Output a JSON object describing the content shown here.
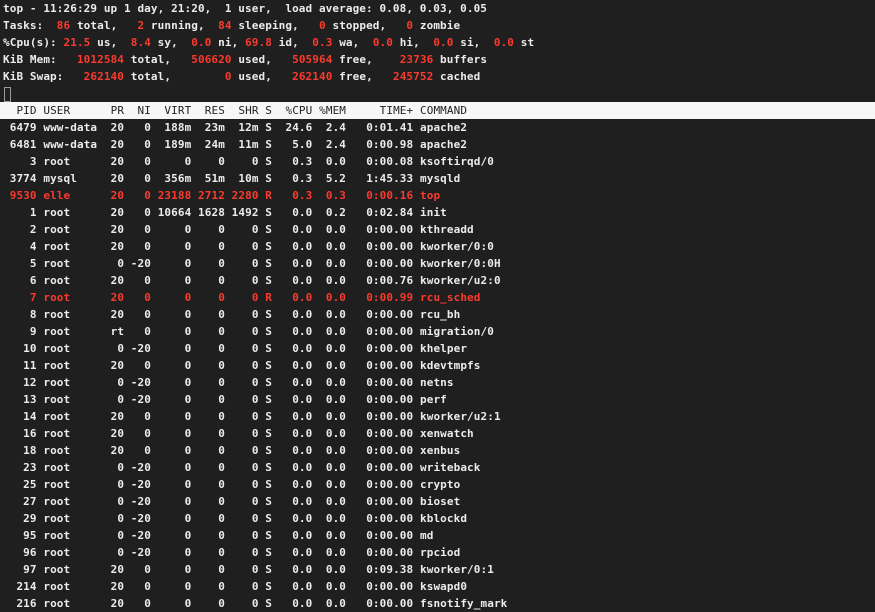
{
  "window_title": "top",
  "colors": {
    "background": "#1f1f1f",
    "text": "#ececec",
    "highlight": "#fb3a2e",
    "header_bar": "#f7f7f7"
  },
  "summary": [
    [
      {
        "t": "top - 11:26:29 up 1 day, 21:20,  1 user,  load average: 0.08, 0.03, 0.05"
      }
    ],
    [
      {
        "t": "Tasks: "
      },
      {
        "v": " 86"
      },
      {
        "t": " total,   "
      },
      {
        "v": "2"
      },
      {
        "t": " running,  "
      },
      {
        "v": "84"
      },
      {
        "t": " sleeping,   "
      },
      {
        "v": "0"
      },
      {
        "t": " stopped,   "
      },
      {
        "v": "0"
      },
      {
        "t": " zombie"
      }
    ],
    [
      {
        "t": "%Cpu(s): "
      },
      {
        "v": "21.5"
      },
      {
        "t": " us,  "
      },
      {
        "v": "8.4"
      },
      {
        "t": " sy,  "
      },
      {
        "v": "0.0"
      },
      {
        "t": " ni, "
      },
      {
        "v": "69.8"
      },
      {
        "t": " id,  "
      },
      {
        "v": "0.3"
      },
      {
        "t": " wa,  "
      },
      {
        "v": "0.0"
      },
      {
        "t": " hi,  "
      },
      {
        "v": "0.0"
      },
      {
        "t": " si,  "
      },
      {
        "v": "0.0"
      },
      {
        "t": " st"
      }
    ],
    [
      {
        "t": "KiB Mem:   "
      },
      {
        "v": "1012584"
      },
      {
        "t": " total,   "
      },
      {
        "v": "506620"
      },
      {
        "t": " used,   "
      },
      {
        "v": "505964"
      },
      {
        "t": " free,    "
      },
      {
        "v": "23736"
      },
      {
        "t": " buffers"
      }
    ],
    [
      {
        "t": "KiB Swap:   "
      },
      {
        "v": "262140"
      },
      {
        "t": " total,        "
      },
      {
        "v": "0"
      },
      {
        "t": " used,   "
      },
      {
        "v": "262140"
      },
      {
        "t": " free,   "
      },
      {
        "v": "245752"
      },
      {
        "t": " cached"
      }
    ]
  ],
  "columns": [
    "PID",
    "USER",
    "PR",
    "NI",
    "VIRT",
    "RES",
    "SHR",
    "S",
    "%CPU",
    "%MEM",
    "TIME+",
    "COMMAND"
  ],
  "processes": [
    {
      "f": [
        "6479",
        "www-data",
        "20",
        "0",
        "188m",
        "23m",
        "12m",
        "S",
        "24.6",
        "2.4",
        "0:01.41",
        "apache2"
      ]
    },
    {
      "f": [
        "6481",
        "www-data",
        "20",
        "0",
        "189m",
        "24m",
        "11m",
        "S",
        "5.0",
        "2.4",
        "0:00.98",
        "apache2"
      ]
    },
    {
      "f": [
        "3",
        "root",
        "20",
        "0",
        "0",
        "0",
        "0",
        "S",
        "0.3",
        "0.0",
        "0:00.08",
        "ksoftirqd/0"
      ]
    },
    {
      "f": [
        "3774",
        "mysql",
        "20",
        "0",
        "356m",
        "51m",
        "10m",
        "S",
        "0.3",
        "5.2",
        "1:45.33",
        "mysqld"
      ]
    },
    {
      "f": [
        "9530",
        "elle",
        "20",
        "0",
        "23188",
        "2712",
        "2280",
        "R",
        "0.3",
        "0.3",
        "0:00.16",
        "top"
      ],
      "hl": true
    },
    {
      "f": [
        "1",
        "root",
        "20",
        "0",
        "10664",
        "1628",
        "1492",
        "S",
        "0.0",
        "0.2",
        "0:02.84",
        "init"
      ]
    },
    {
      "f": [
        "2",
        "root",
        "20",
        "0",
        "0",
        "0",
        "0",
        "S",
        "0.0",
        "0.0",
        "0:00.00",
        "kthreadd"
      ]
    },
    {
      "f": [
        "4",
        "root",
        "20",
        "0",
        "0",
        "0",
        "0",
        "S",
        "0.0",
        "0.0",
        "0:00.00",
        "kworker/0:0"
      ]
    },
    {
      "f": [
        "5",
        "root",
        "0",
        "-20",
        "0",
        "0",
        "0",
        "S",
        "0.0",
        "0.0",
        "0:00.00",
        "kworker/0:0H"
      ]
    },
    {
      "f": [
        "6",
        "root",
        "20",
        "0",
        "0",
        "0",
        "0",
        "S",
        "0.0",
        "0.0",
        "0:00.76",
        "kworker/u2:0"
      ]
    },
    {
      "f": [
        "7",
        "root",
        "20",
        "0",
        "0",
        "0",
        "0",
        "R",
        "0.0",
        "0.0",
        "0:00.99",
        "rcu_sched"
      ],
      "hl": true
    },
    {
      "f": [
        "8",
        "root",
        "20",
        "0",
        "0",
        "0",
        "0",
        "S",
        "0.0",
        "0.0",
        "0:00.00",
        "rcu_bh"
      ]
    },
    {
      "f": [
        "9",
        "root",
        "rt",
        "0",
        "0",
        "0",
        "0",
        "S",
        "0.0",
        "0.0",
        "0:00.00",
        "migration/0"
      ]
    },
    {
      "f": [
        "10",
        "root",
        "0",
        "-20",
        "0",
        "0",
        "0",
        "S",
        "0.0",
        "0.0",
        "0:00.00",
        "khelper"
      ]
    },
    {
      "f": [
        "11",
        "root",
        "20",
        "0",
        "0",
        "0",
        "0",
        "S",
        "0.0",
        "0.0",
        "0:00.00",
        "kdevtmpfs"
      ]
    },
    {
      "f": [
        "12",
        "root",
        "0",
        "-20",
        "0",
        "0",
        "0",
        "S",
        "0.0",
        "0.0",
        "0:00.00",
        "netns"
      ]
    },
    {
      "f": [
        "13",
        "root",
        "0",
        "-20",
        "0",
        "0",
        "0",
        "S",
        "0.0",
        "0.0",
        "0:00.00",
        "perf"
      ]
    },
    {
      "f": [
        "14",
        "root",
        "20",
        "0",
        "0",
        "0",
        "0",
        "S",
        "0.0",
        "0.0",
        "0:00.00",
        "kworker/u2:1"
      ]
    },
    {
      "f": [
        "16",
        "root",
        "20",
        "0",
        "0",
        "0",
        "0",
        "S",
        "0.0",
        "0.0",
        "0:00.00",
        "xenwatch"
      ]
    },
    {
      "f": [
        "18",
        "root",
        "20",
        "0",
        "0",
        "0",
        "0",
        "S",
        "0.0",
        "0.0",
        "0:00.00",
        "xenbus"
      ]
    },
    {
      "f": [
        "23",
        "root",
        "0",
        "-20",
        "0",
        "0",
        "0",
        "S",
        "0.0",
        "0.0",
        "0:00.00",
        "writeback"
      ]
    },
    {
      "f": [
        "25",
        "root",
        "0",
        "-20",
        "0",
        "0",
        "0",
        "S",
        "0.0",
        "0.0",
        "0:00.00",
        "crypto"
      ]
    },
    {
      "f": [
        "27",
        "root",
        "0",
        "-20",
        "0",
        "0",
        "0",
        "S",
        "0.0",
        "0.0",
        "0:00.00",
        "bioset"
      ]
    },
    {
      "f": [
        "29",
        "root",
        "0",
        "-20",
        "0",
        "0",
        "0",
        "S",
        "0.0",
        "0.0",
        "0:00.00",
        "kblockd"
      ]
    },
    {
      "f": [
        "95",
        "root",
        "0",
        "-20",
        "0",
        "0",
        "0",
        "S",
        "0.0",
        "0.0",
        "0:00.00",
        "md"
      ]
    },
    {
      "f": [
        "96",
        "root",
        "0",
        "-20",
        "0",
        "0",
        "0",
        "S",
        "0.0",
        "0.0",
        "0:00.00",
        "rpciod"
      ]
    },
    {
      "f": [
        "97",
        "root",
        "20",
        "0",
        "0",
        "0",
        "0",
        "S",
        "0.0",
        "0.0",
        "0:09.38",
        "kworker/0:1"
      ]
    },
    {
      "f": [
        "214",
        "root",
        "20",
        "0",
        "0",
        "0",
        "0",
        "S",
        "0.0",
        "0.0",
        "0:00.00",
        "kswapd0"
      ]
    },
    {
      "f": [
        "216",
        "root",
        "20",
        "0",
        "0",
        "0",
        "0",
        "S",
        "0.0",
        "0.0",
        "0:00.00",
        "fsnotify_mark"
      ]
    }
  ]
}
